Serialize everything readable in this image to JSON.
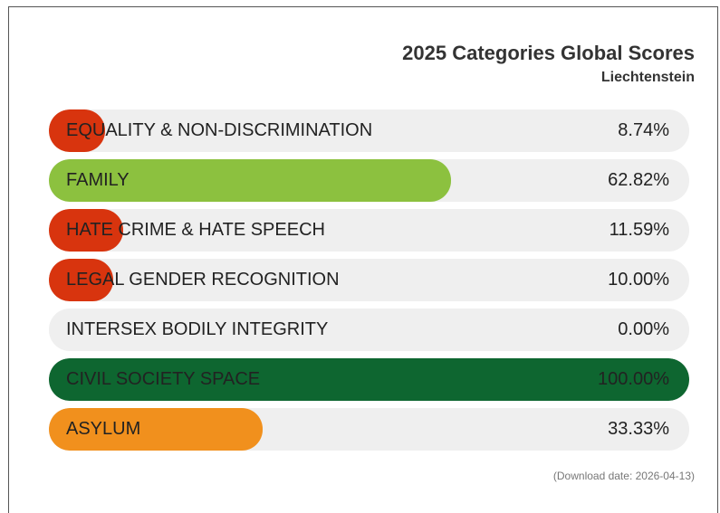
{
  "chart_data": {
    "type": "bar",
    "title": "2025 Categories Global Scores",
    "subtitle": "Liechtenstein",
    "orientation": "horizontal",
    "xlim": [
      0,
      100
    ],
    "unit": "%",
    "categories": [
      "EQUALITY & NON-DISCRIMINATION",
      "FAMILY",
      "HATE CRIME & HATE SPEECH",
      "LEGAL GENDER RECOGNITION",
      "INTERSEX BODILY INTEGRITY",
      "CIVIL SOCIETY SPACE",
      "ASYLUM"
    ],
    "values": [
      8.74,
      62.82,
      11.59,
      10.0,
      0.0,
      100.0,
      33.33
    ],
    "value_labels": [
      "8.74%",
      "62.82%",
      "11.59%",
      "10.00%",
      "0.00%",
      "100.00%",
      "33.33%"
    ],
    "colors": [
      "#d8340e",
      "#8cc13f",
      "#d8340e",
      "#d8340e",
      "#d8340e",
      "#0e6630",
      "#f1901d"
    ],
    "track_color": "#efefef",
    "footer": "(Download date: 2026-04-13)"
  }
}
